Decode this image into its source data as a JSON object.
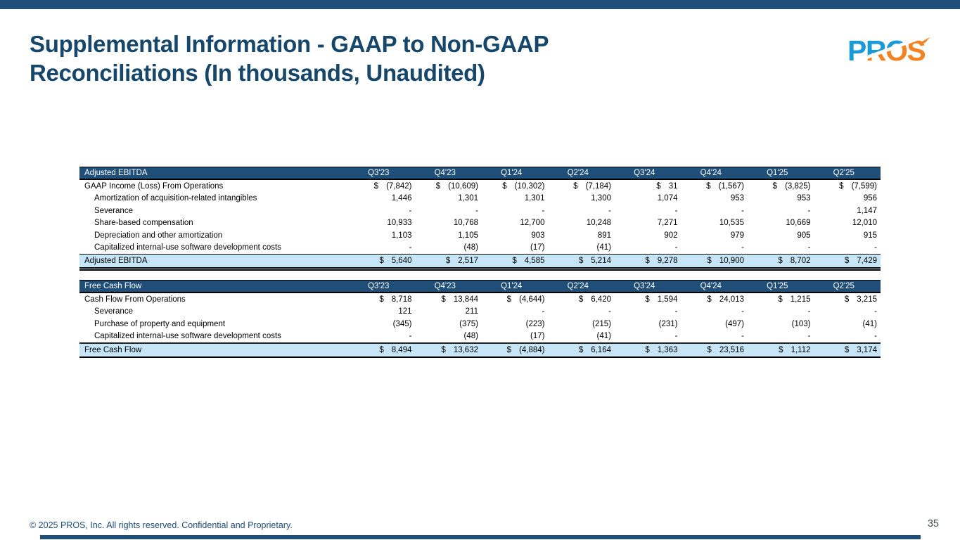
{
  "slide": {
    "title_lines": [
      "Supplemental Information - GAAP to Non-GAAP",
      "Reconciliations (In thousands, Unaudited)"
    ],
    "copyright": "© 2025 PROS, Inc. All rights reserved. Confidential and Proprietary.",
    "page_number": "35"
  },
  "logo": {
    "text": "PROS"
  },
  "colors": {
    "accent_navy": "#1e4e79",
    "table_header_navy": "#1f4e79",
    "title_blue": "#17466b",
    "total_row_light_blue": "#c6e6f7",
    "logo_blue": "#1b9ad6",
    "logo_orange": "#f58220"
  },
  "tables": [
    {
      "title": "Adjusted EBITDA",
      "columns": [
        "Q3'23",
        "Q4'23",
        "Q1'24",
        "Q2'24",
        "Q3'24",
        "Q4'24",
        "Q1'25",
        "Q2'25"
      ],
      "rows": [
        {
          "label": "GAAP Income (Loss) From Operations",
          "indent": false,
          "dollar": true,
          "values": [
            "(7,842)",
            "(10,609)",
            "(10,302)",
            "(7,184)",
            "31",
            "(1,567)",
            "(3,825)",
            "(7,599)"
          ]
        },
        {
          "label": "Amortization of acquisition-related intangibles",
          "indent": true,
          "dollar": false,
          "values": [
            "1,446",
            "1,301",
            "1,301",
            "1,300",
            "1,074",
            "953",
            "953",
            "956"
          ]
        },
        {
          "label": "Severance",
          "indent": true,
          "dollar": false,
          "values": [
            "-",
            "-",
            "-",
            "-",
            "-",
            "-",
            "-",
            "1,147"
          ]
        },
        {
          "label": "Share-based compensation",
          "indent": true,
          "dollar": false,
          "values": [
            "10,933",
            "10,768",
            "12,700",
            "10,248",
            "7,271",
            "10,535",
            "10,669",
            "12,010"
          ]
        },
        {
          "label": "Depreciation and other amortization",
          "indent": true,
          "dollar": false,
          "values": [
            "1,103",
            "1,105",
            "903",
            "891",
            "902",
            "979",
            "905",
            "915"
          ]
        },
        {
          "label": "Capitalized internal-use software development costs",
          "indent": true,
          "dollar": false,
          "values": [
            "-",
            "(48)",
            "(17)",
            "(41)",
            "-",
            "-",
            "-",
            "-"
          ]
        }
      ],
      "total": {
        "label": "Adjusted EBITDA",
        "dollar": true,
        "values": [
          "5,640",
          "2,517",
          "4,585",
          "5,214",
          "9,278",
          "10,900",
          "8,702",
          "7,429"
        ]
      }
    },
    {
      "title": "Free Cash Flow",
      "columns": [
        "Q3'23",
        "Q4'23",
        "Q1'24",
        "Q2'24",
        "Q3'24",
        "Q4'24",
        "Q1'25",
        "Q2'25"
      ],
      "rows": [
        {
          "label": "Cash Flow From Operations",
          "indent": false,
          "dollar": true,
          "values": [
            "8,718",
            "13,844",
            "(4,644)",
            "6,420",
            "1,594",
            "24,013",
            "1,215",
            "3,215"
          ]
        },
        {
          "label": "Severance",
          "indent": true,
          "dollar": false,
          "values": [
            "121",
            "211",
            "-",
            "-",
            "-",
            "-",
            "-",
            "-"
          ]
        },
        {
          "label": "Purchase of property and equipment",
          "indent": true,
          "dollar": false,
          "values": [
            "(345)",
            "(375)",
            "(223)",
            "(215)",
            "(231)",
            "(497)",
            "(103)",
            "(41)"
          ]
        },
        {
          "label": "Capitalized internal-use software development costs",
          "indent": true,
          "dollar": false,
          "values": [
            "-",
            "(48)",
            "(17)",
            "(41)",
            "-",
            "-",
            "-",
            "-"
          ]
        }
      ],
      "total": {
        "label": "Free Cash Flow",
        "dollar": true,
        "values": [
          "8,494",
          "13,632",
          "(4,884)",
          "6,164",
          "1,363",
          "23,516",
          "1,112",
          "3,174"
        ]
      }
    }
  ]
}
